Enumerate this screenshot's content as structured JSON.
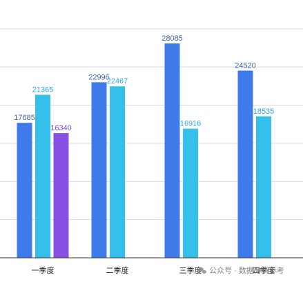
{
  "chart_data": {
    "type": "bar",
    "title": "",
    "xlabel": "",
    "ylabel": "",
    "ylim": [
      0,
      30000
    ],
    "grid": true,
    "legend": "none",
    "categories": [
      "一季度",
      "二季度",
      "三季度",
      "四季度"
    ],
    "series": [
      {
        "values": [
          17685,
          22996,
          28085,
          24520
        ],
        "color": "#3f7be9",
        "label_color": "#3f64b8"
      },
      {
        "values": [
          21365,
          22467,
          16916,
          18535
        ],
        "color": "#35c0eb",
        "label_color": "#2ea9db"
      },
      {
        "values": [
          16340,
          null,
          null,
          null
        ],
        "color": "#8752e3",
        "label_color": "#7b4dcc"
      }
    ]
  },
  "watermark": {
    "text": "公众号 · 数据分析参考",
    "icon": "chat-bubbles-icon"
  }
}
